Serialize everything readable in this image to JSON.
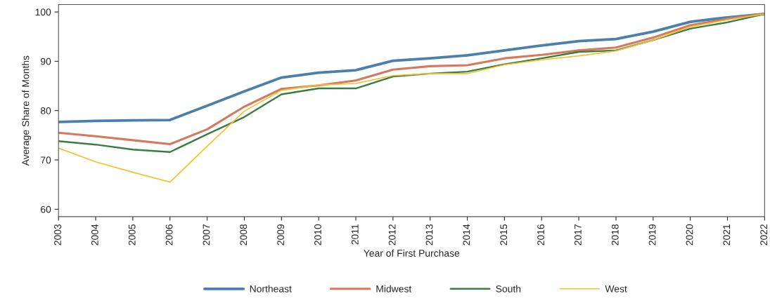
{
  "chart_data": {
    "type": "line",
    "xlabel": "Year of First Purchase",
    "ylabel": "Average Share of Months",
    "x": [
      2003,
      2004,
      2005,
      2006,
      2007,
      2008,
      2009,
      2010,
      2011,
      2012,
      2013,
      2014,
      2015,
      2016,
      2017,
      2018,
      2019,
      2020,
      2021,
      2022
    ],
    "series": [
      {
        "name": "Northeast",
        "color": "#4c7fab",
        "values": [
          77.7,
          77.9,
          78.0,
          78.1,
          81.0,
          83.9,
          86.7,
          87.7,
          88.2,
          90.1,
          90.6,
          91.2,
          92.2,
          93.2,
          94.1,
          94.5,
          96.0,
          98.0,
          98.9,
          99.6
        ]
      },
      {
        "name": "Midwest",
        "color": "#d6785c",
        "values": [
          75.5,
          74.8,
          74.0,
          73.2,
          76.2,
          80.8,
          84.4,
          85.1,
          86.1,
          88.3,
          89.0,
          89.2,
          90.6,
          91.3,
          92.2,
          92.8,
          94.8,
          97.3,
          98.6,
          99.6
        ]
      },
      {
        "name": "South",
        "color": "#3a7d44",
        "values": [
          73.8,
          73.1,
          72.1,
          71.6,
          75.2,
          78.7,
          83.3,
          84.5,
          84.5,
          86.9,
          87.5,
          87.9,
          89.4,
          90.6,
          91.9,
          92.2,
          94.3,
          96.6,
          97.9,
          99.6
        ]
      },
      {
        "name": "West",
        "color": "#f2c12e",
        "values": [
          72.4,
          69.6,
          67.5,
          65.5,
          72.8,
          79.9,
          84.1,
          85.2,
          85.5,
          87.1,
          87.5,
          87.5,
          89.3,
          90.3,
          91.1,
          92.1,
          94.3,
          97.0,
          98.4,
          99.6
        ]
      }
    ],
    "xlim": [
      2003,
      2022
    ],
    "xticks": [
      2003,
      2004,
      2005,
      2006,
      2007,
      2008,
      2009,
      2010,
      2011,
      2012,
      2013,
      2014,
      2015,
      2016,
      2017,
      2018,
      2019,
      2020,
      2021,
      2022
    ],
    "ylim": [
      58.5,
      101.5
    ],
    "yticks": [
      60,
      70,
      80,
      90,
      100
    ],
    "grid": false,
    "legend": "bottom",
    "marker": "none",
    "line_style": "solid"
  }
}
